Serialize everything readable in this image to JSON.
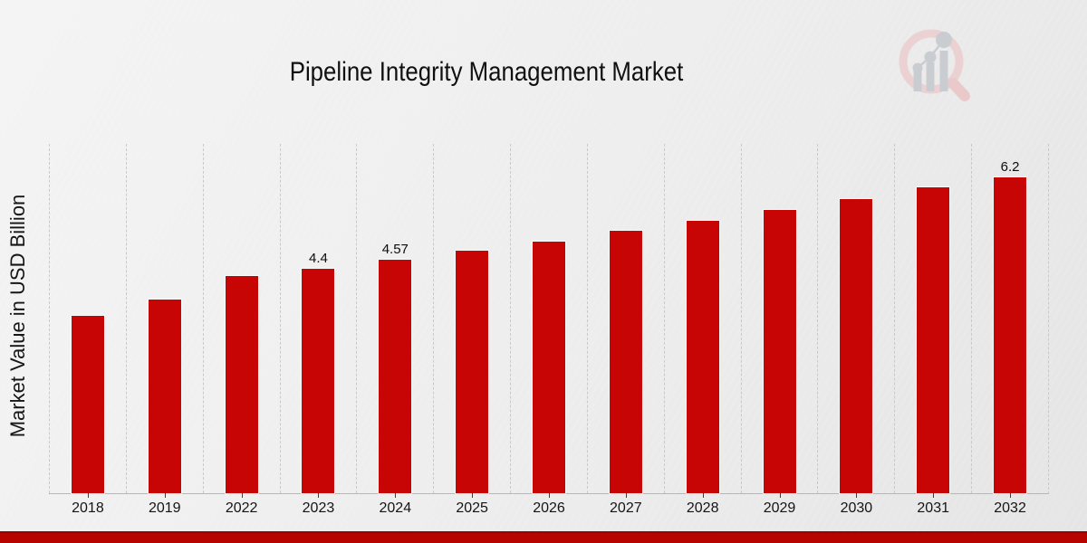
{
  "chart_data": {
    "type": "bar",
    "title": "Pipeline Integrity Management Market",
    "ylabel": "Market Value in USD Billion",
    "xlabel": "",
    "categories": [
      "2018",
      "2019",
      "2022",
      "2023",
      "2024",
      "2025",
      "2026",
      "2027",
      "2028",
      "2029",
      "2030",
      "2031",
      "2032"
    ],
    "values": [
      3.47,
      3.8,
      4.26,
      4.4,
      4.57,
      4.75,
      4.94,
      5.14,
      5.35,
      5.55,
      5.76,
      6.0,
      6.2
    ],
    "data_labels": [
      "",
      "",
      "",
      "4.4",
      "4.57",
      "",
      "",
      "",
      "",
      "",
      "",
      "",
      "6.2"
    ],
    "ylim": [
      0,
      6.85
    ],
    "grid": "vertical-dashed",
    "legend": "none",
    "bar_color": "#c80505"
  },
  "branding": {
    "logo_icon": "magnifier-bar-chart-logo",
    "logo_ring_color": "#eccfcf",
    "logo_glyph_color": "#c6cacf",
    "footer_accent_color": "#b80400"
  }
}
